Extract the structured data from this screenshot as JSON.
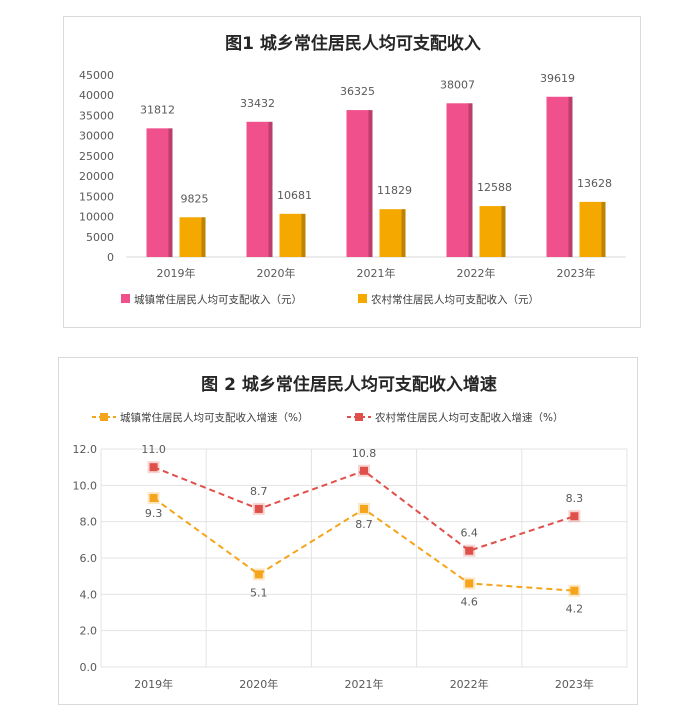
{
  "chart_data": [
    {
      "type": "bar",
      "title": "图1  城乡常住居民人均可支配收入",
      "categories": [
        "2019年",
        "2020年",
        "2021年",
        "2022年",
        "2023年"
      ],
      "yticks": [
        "45000",
        "40000",
        "35000",
        "30000",
        "25000",
        "20000",
        "15000",
        "10000",
        "5000",
        "0"
      ],
      "ylim": [
        0,
        45000
      ],
      "legend_position": "bottom",
      "series": [
        {
          "name": "城镇常住居民人均可支配收入（元）",
          "color": "#f0508c",
          "values": [
            31812,
            33432,
            36325,
            38007,
            39619
          ]
        },
        {
          "name": "农村常住居民人均可支配收入（元）",
          "color": "#f4a800",
          "values": [
            9825,
            10681,
            11829,
            12588,
            13628
          ]
        }
      ]
    },
    {
      "type": "line",
      "title": "图 2  城乡常住居民人均可支配收入增速",
      "categories": [
        "2019年",
        "2020年",
        "2021年",
        "2022年",
        "2023年"
      ],
      "yticks": [
        "12.0",
        "10.0",
        "8.0",
        "6.0",
        "4.0",
        "2.0",
        "0.0"
      ],
      "ylim": [
        0,
        12
      ],
      "grid": true,
      "legend_position": "top",
      "series": [
        {
          "name": "城镇常住居民人均可支配收入增速（%）",
          "color": "#f4a51c",
          "values": [
            9.3,
            5.1,
            8.7,
            4.6,
            4.2
          ],
          "labels": [
            "9.3",
            "5.1",
            "8.7",
            "4.6",
            "4.2"
          ]
        },
        {
          "name": "农村常住居民人均可支配收入增速（%）",
          "color": "#e0504a",
          "values": [
            11.0,
            8.7,
            10.8,
            6.4,
            8.3
          ],
          "labels": [
            "11.0",
            "8.7",
            "10.8",
            "6.4",
            "8.3"
          ]
        }
      ]
    }
  ]
}
